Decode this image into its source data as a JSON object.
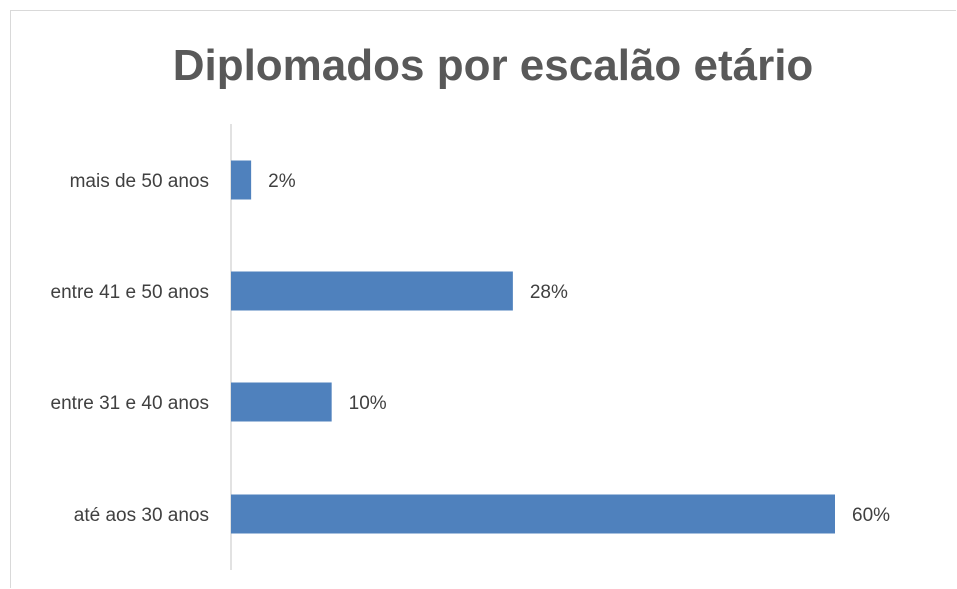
{
  "chart_data": {
    "type": "bar",
    "orientation": "horizontal",
    "title": "Diplomados por escalão etário",
    "categories": [
      "mais de 50 anos",
      "entre 41 e 50 anos",
      "entre 31 e 40 anos",
      "até aos 30 anos"
    ],
    "values": [
      2,
      28,
      10,
      60
    ],
    "value_labels": [
      "2%",
      "28%",
      "10%",
      "60%"
    ],
    "value_unit": "%",
    "xlim": [
      0,
      60
    ],
    "grid": false,
    "legend": "none",
    "bar_color": "#4f81bd"
  }
}
